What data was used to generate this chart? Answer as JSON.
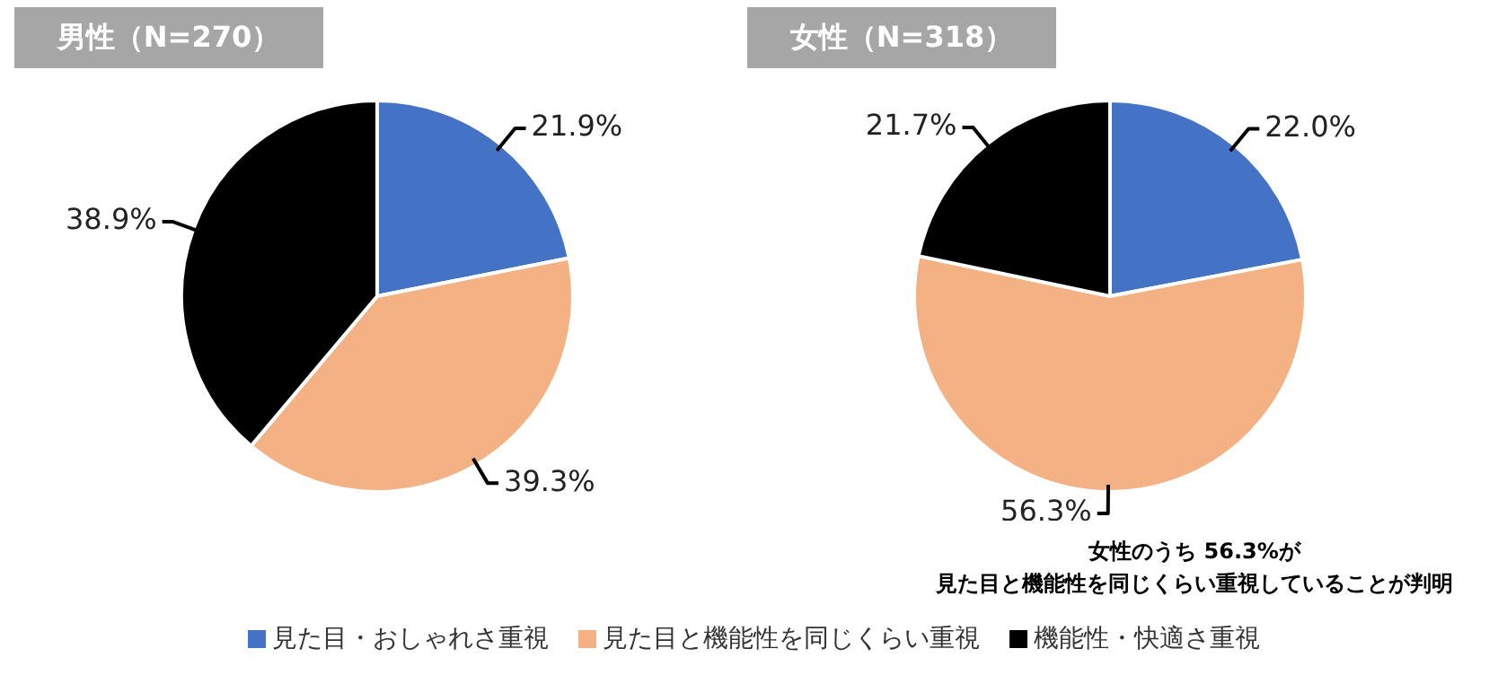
{
  "chart_data": [
    {
      "type": "pie",
      "title": "男性（N=270）",
      "categories": [
        "見た目・おしゃれさ重視",
        "見た目と機能性を同じくらい重視",
        "機能性・快適さ重視"
      ],
      "values": [
        21.9,
        39.3,
        38.9
      ],
      "value_labels": [
        "21.9%",
        "39.3%",
        "38.9%"
      ],
      "colors": [
        "#4472c4",
        "#f4b183",
        "#000000"
      ],
      "legend": "bottom"
    },
    {
      "type": "pie",
      "title": "女性（N=318）",
      "categories": [
        null,
        null,
        null
      ],
      "values": [
        22.0,
        56.3,
        21.7
      ],
      "value_labels": [
        "22.0%",
        "56.3%",
        "21.7%"
      ],
      "colors": [
        "#4472c4",
        "#f4b183",
        "#000000"
      ],
      "annotations": [
        "女性のうち 56.3%が",
        "見た目と機能性を同じくらい重視していることが判明"
      ]
    }
  ]
}
